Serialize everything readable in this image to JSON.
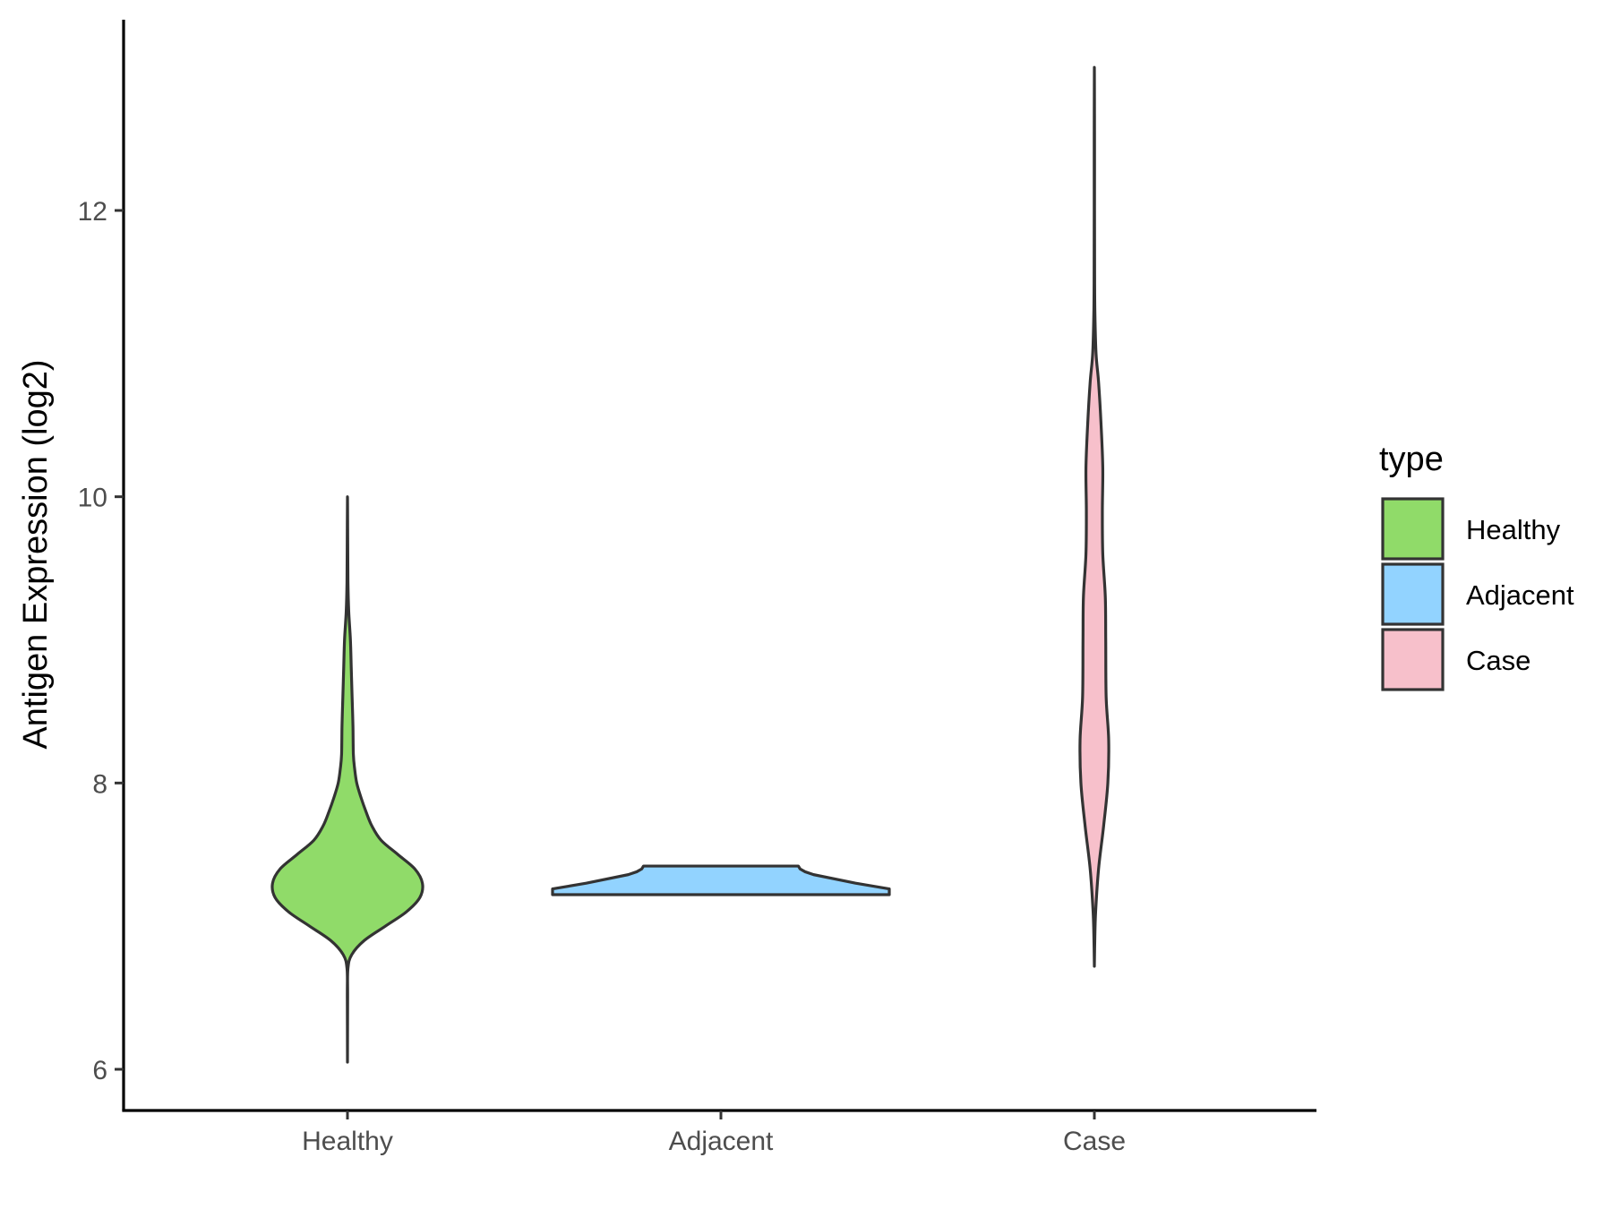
{
  "chart_data": {
    "type": "violin",
    "title": "",
    "xlabel": "",
    "ylabel": "Antigen Expression (log2)",
    "categories": [
      "Healthy",
      "Adjacent",
      "Case"
    ],
    "ylim": [
      5.7,
      13.3
    ],
    "yticks": [
      6,
      8,
      10,
      12
    ],
    "grid": false,
    "legend": {
      "title": "type",
      "position": "right",
      "items": [
        {
          "label": "Healthy",
          "color": "#90DB69"
        },
        {
          "label": "Adjacent",
          "color": "#92D3FF"
        },
        {
          "label": "Case",
          "color": "#F7C0CB"
        }
      ]
    },
    "series": [
      {
        "category": "Healthy",
        "color": "#90DB69",
        "profile": [
          [
            6.05,
            0.0
          ],
          [
            6.5,
            0.002
          ],
          [
            6.7,
            0.005
          ],
          [
            6.8,
            0.05
          ],
          [
            6.9,
            0.2
          ],
          [
            7.0,
            0.45
          ],
          [
            7.1,
            0.7
          ],
          [
            7.2,
            0.86
          ],
          [
            7.3,
            0.89
          ],
          [
            7.4,
            0.8
          ],
          [
            7.5,
            0.6
          ],
          [
            7.6,
            0.4
          ],
          [
            7.7,
            0.29
          ],
          [
            7.8,
            0.22
          ],
          [
            7.9,
            0.16
          ],
          [
            8.0,
            0.11
          ],
          [
            8.1,
            0.085
          ],
          [
            8.2,
            0.07
          ],
          [
            8.4,
            0.065
          ],
          [
            8.6,
            0.055
          ],
          [
            8.8,
            0.045
          ],
          [
            9.0,
            0.035
          ],
          [
            9.2,
            0.015
          ],
          [
            9.4,
            0.006
          ],
          [
            9.7,
            0.003
          ],
          [
            10.0,
            0.0
          ]
        ]
      },
      {
        "category": "Adjacent",
        "color": "#92D3FF",
        "profile": [
          [
            7.22,
            1.0
          ],
          [
            7.26,
            1.0
          ],
          [
            7.3,
            0.8
          ],
          [
            7.36,
            0.55
          ],
          [
            7.38,
            0.5
          ],
          [
            7.4,
            0.47
          ],
          [
            7.42,
            0.46
          ]
        ]
      },
      {
        "category": "Case",
        "color": "#F7C0CB",
        "profile": [
          [
            6.72,
            0.0
          ],
          [
            6.9,
            0.005
          ],
          [
            7.1,
            0.015
          ],
          [
            7.4,
            0.05
          ],
          [
            7.7,
            0.11
          ],
          [
            8.0,
            0.16
          ],
          [
            8.3,
            0.17
          ],
          [
            8.6,
            0.14
          ],
          [
            9.0,
            0.135
          ],
          [
            9.3,
            0.13
          ],
          [
            9.6,
            0.1
          ],
          [
            9.9,
            0.095
          ],
          [
            10.2,
            0.1
          ],
          [
            10.5,
            0.08
          ],
          [
            10.8,
            0.05
          ],
          [
            11.0,
            0.02
          ],
          [
            11.3,
            0.006
          ],
          [
            11.6,
            0.003
          ],
          [
            12.0,
            0.002
          ],
          [
            12.5,
            0.002
          ],
          [
            13.0,
            0.0
          ]
        ]
      }
    ]
  }
}
